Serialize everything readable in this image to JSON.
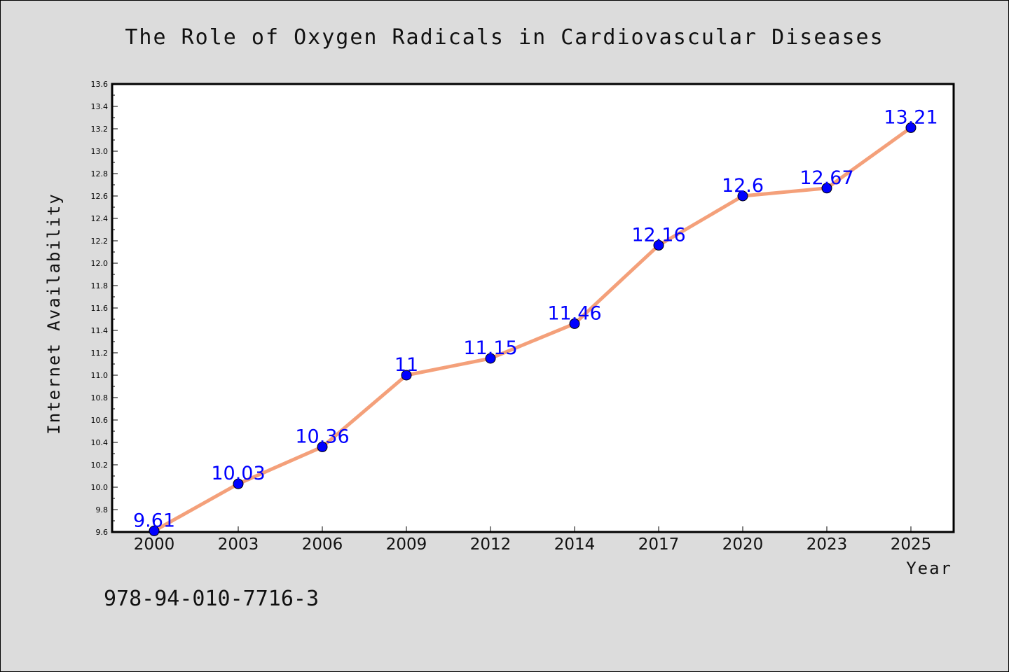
{
  "chart_data": {
    "type": "line",
    "title": "The Role of Oxygen Radicals in Cardiovascular Diseases",
    "xlabel": "Year",
    "ylabel": "Internet Availability",
    "categories": [
      "2000",
      "2003",
      "2006",
      "2009",
      "2012",
      "2014",
      "2017",
      "2020",
      "2023",
      "2025"
    ],
    "values": [
      9.61,
      10.03,
      10.36,
      11.0,
      11.15,
      11.46,
      12.16,
      12.6,
      12.67,
      13.21
    ],
    "data_labels": [
      "9.61",
      "10.03",
      "10.36",
      "11",
      "11.15",
      "11.46",
      "12.16",
      "12.6",
      "12.67",
      "13.21"
    ],
    "ylim": [
      9.6,
      13.6
    ],
    "ytick_step": 0.2,
    "grid": false,
    "legend": "none",
    "line_color": "#f4a07a",
    "marker_color": "#0000ff",
    "label_color": "#0000ff",
    "background_color": "#dcdcdc",
    "plot_background": "#ffffff"
  },
  "annotation": {
    "isbn": "978-94-010-7716-3"
  }
}
